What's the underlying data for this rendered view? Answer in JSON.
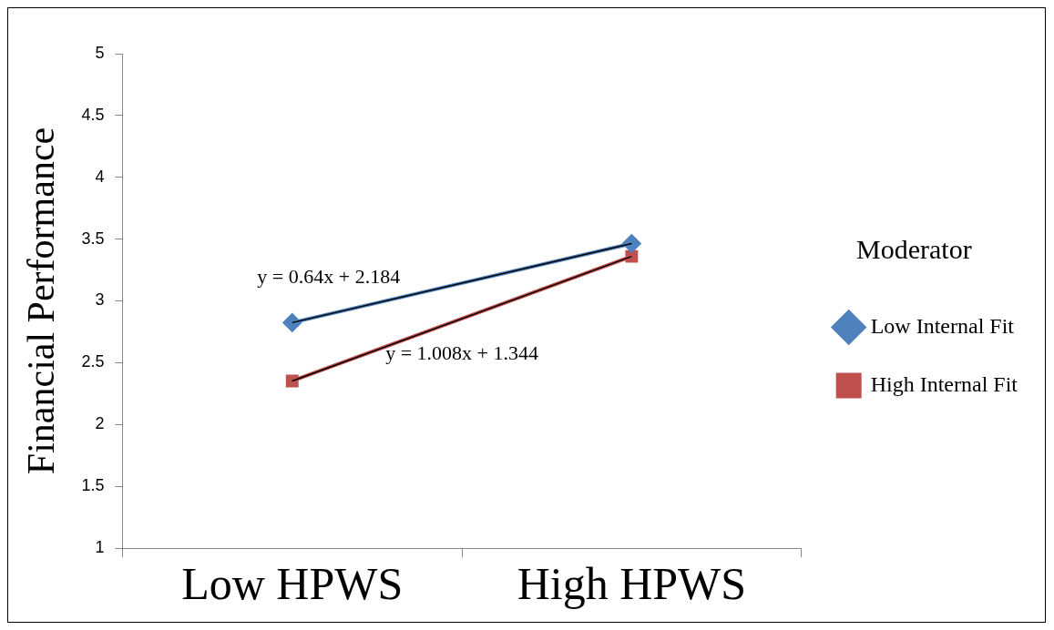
{
  "chart_data": {
    "type": "line",
    "ylabel": "Financial Performance",
    "legend_title": "Moderator",
    "categories": [
      "Low HPWS",
      "High HPWS"
    ],
    "series": [
      {
        "name": "Low Internal Fit",
        "color": "#4f81bd",
        "values": [
          2.824,
          3.464
        ],
        "marker": "diamond"
      },
      {
        "name": "High Internal Fit",
        "color": "#c0504d",
        "values": [
          2.352,
          3.36
        ],
        "marker": "square"
      },
      {
        "type": "line",
        "color": "#000000",
        "values": [
          2.824,
          3.464
        ],
        "marker": "none"
      },
      {
        "type": "line",
        "color": "#000000",
        "values": [
          2.352,
          3.36
        ],
        "marker": "none"
      }
    ],
    "annotations": [
      "y = 0.64x + 2.184",
      "y = 1.008x + 1.344"
    ],
    "ylim": [
      1,
      5
    ],
    "yticks": [
      1,
      1.5,
      2,
      2.5,
      3,
      3.5,
      4,
      4.5,
      5
    ],
    "grid": false,
    "legend": "right"
  }
}
